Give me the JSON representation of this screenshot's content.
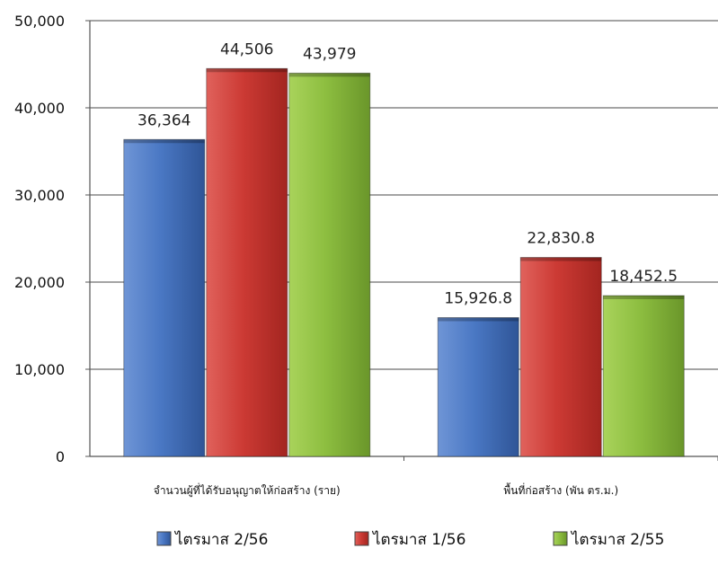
{
  "chart_data": {
    "type": "bar",
    "categories": [
      "จำนวนผู้ที่ได้รับอนุญาตให้ก่อสร้าง (ราย)",
      "พื้นที่ก่อสร้าง (พัน ตร.ม.)"
    ],
    "series": [
      {
        "name": "ไตรมาส 2/56",
        "values": [
          36364,
          15926.8
        ],
        "labels": [
          "36,364",
          "15,926.8"
        ],
        "color": "#3b67b8"
      },
      {
        "name": "ไตรมาส 1/56",
        "values": [
          44506,
          22830.8
        ],
        "labels": [
          "44,506",
          "22,830.8"
        ],
        "color": "#c9302c"
      },
      {
        "name": "ไตรมาส 2/55",
        "values": [
          43979,
          18452.5
        ],
        "labels": [
          "43,979",
          "18,452.5"
        ],
        "color": "#86b83a"
      }
    ],
    "yticks": [
      "0",
      "10,000",
      "20,000",
      "30,000",
      "40,000",
      "50,000"
    ],
    "ylim": [
      0,
      50000
    ],
    "grid": true,
    "legend": "bottom"
  }
}
